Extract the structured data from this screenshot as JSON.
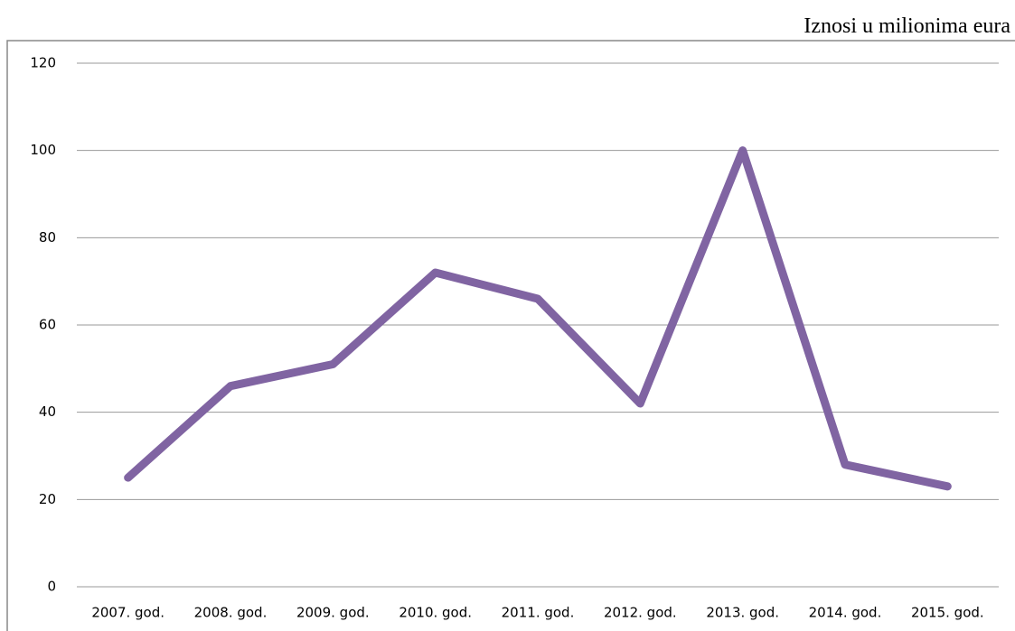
{
  "chart_data": {
    "type": "line",
    "title": "Iznosi u milionima eura",
    "categories": [
      "2007. god.",
      "2008. god.",
      "2009. god.",
      "2010. god.",
      "2011. god.",
      "2012. god.",
      "2013. god.",
      "2014. god.",
      "2015. god."
    ],
    "series": [
      {
        "name": null,
        "color": "#8064a2",
        "values": [
          25,
          46,
          51,
          72,
          66,
          42,
          100,
          28,
          23
        ]
      }
    ],
    "ylim": [
      0,
      120
    ],
    "yticks": [
      0,
      20,
      40,
      60,
      80,
      100,
      120
    ],
    "grid": true
  }
}
